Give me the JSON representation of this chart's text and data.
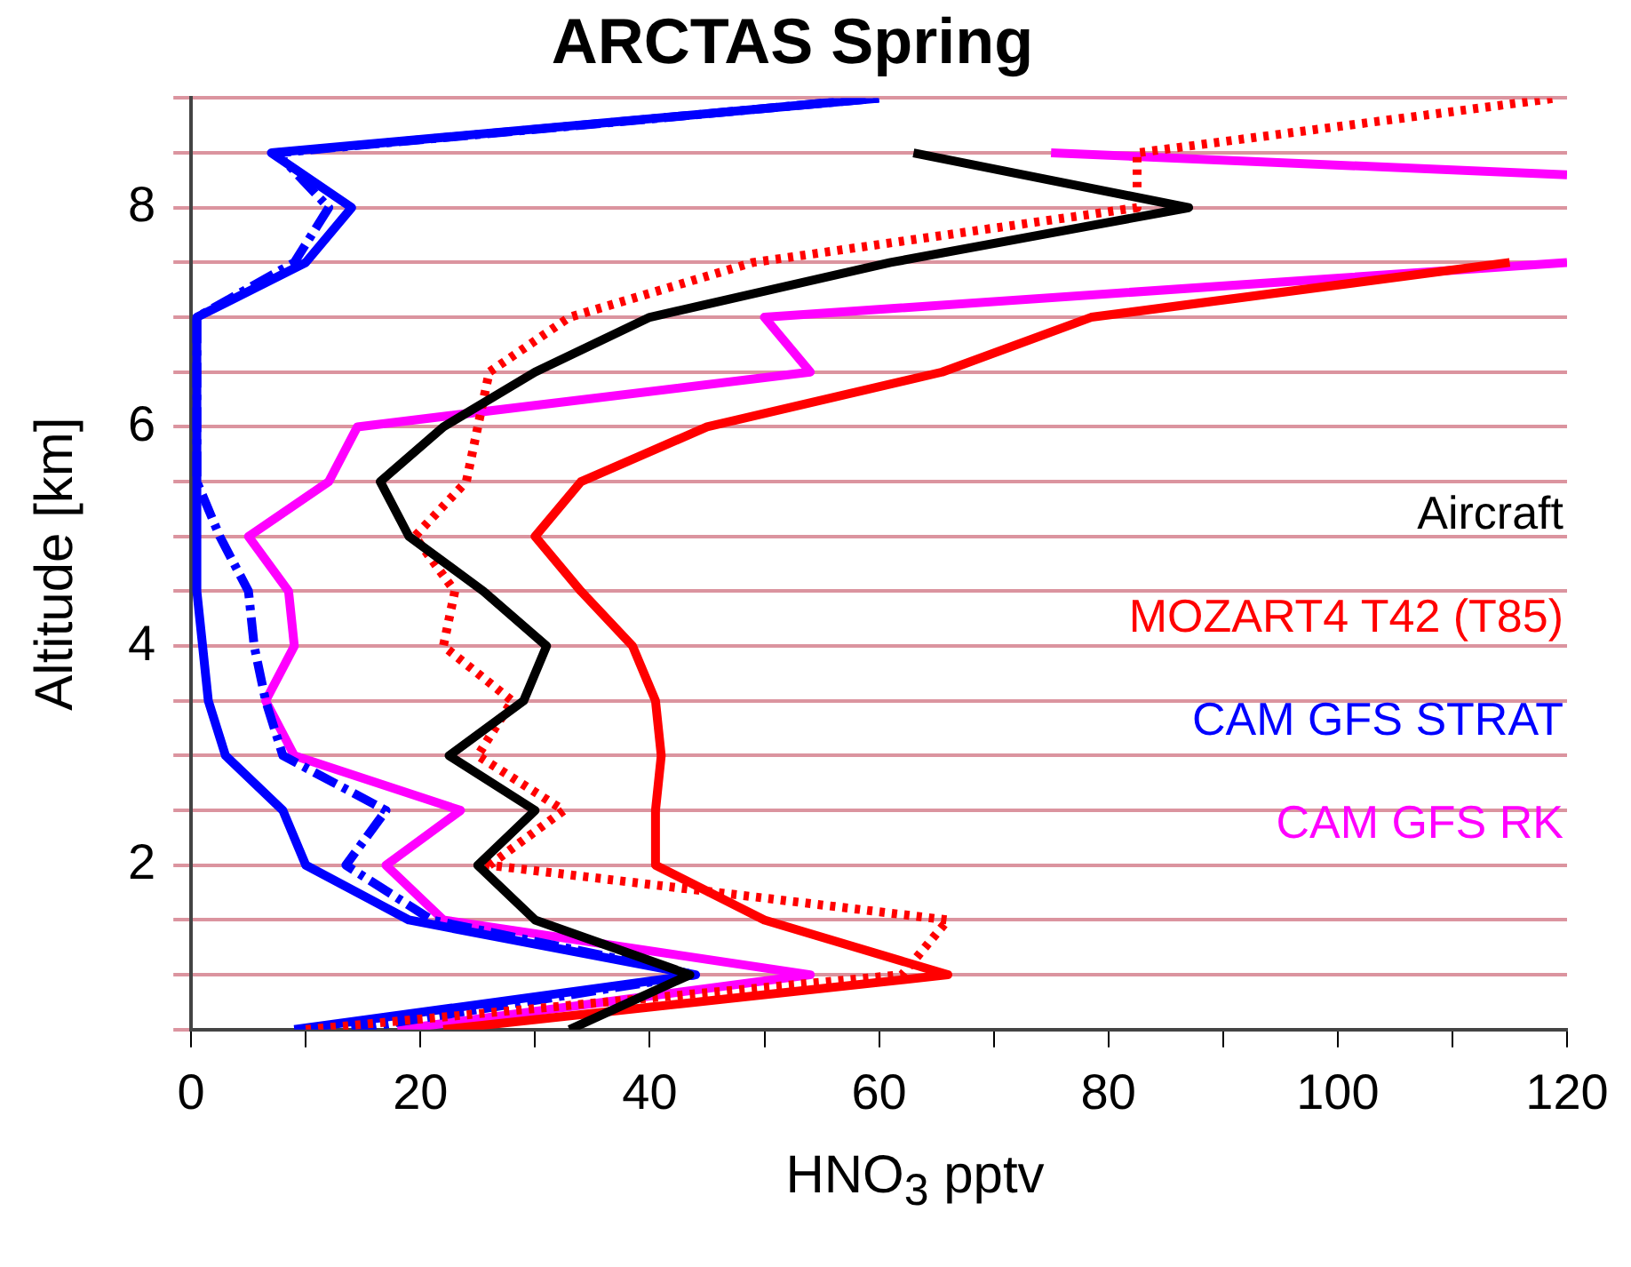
{
  "chart_data": {
    "type": "line",
    "title": "ARCTAS Spring",
    "xlabel": "HNO$_{3}$ pptv",
    "ylabel": "Altitude [km]",
    "legend": "right",
    "grid": "y",
    "marker": "none",
    "xlim": [
      0,
      120
    ],
    "xticks": [
      0,
      {
        "value": 10,
        "label": null
      },
      20,
      {
        "value": 30,
        "label": null
      },
      40,
      {
        "value": 50,
        "label": null
      },
      60,
      {
        "value": 70,
        "label": null
      },
      80,
      {
        "value": 90,
        "label": null
      },
      100,
      {
        "value": 110,
        "label": null
      },
      120
    ],
    "ylim": [
      0.5,
      9
    ],
    "yticks": [
      {
        "value": 0.5,
        "label": null
      },
      {
        "value": 1,
        "label": null
      },
      {
        "value": 1.5,
        "label": null
      },
      2,
      {
        "value": 2.5,
        "label": null
      },
      {
        "value": 3,
        "label": null
      },
      {
        "value": 3.5,
        "label": null
      },
      4,
      {
        "value": 4.5,
        "label": null
      },
      {
        "value": 5,
        "label": null
      },
      {
        "value": 5.5,
        "label": null
      },
      6,
      {
        "value": 6.5,
        "label": null
      },
      {
        "value": 7,
        "label": null
      },
      {
        "value": 7.5,
        "label": null
      },
      8,
      {
        "value": 8.5,
        "label": null
      },
      {
        "value": 9,
        "label": null
      }
    ],
    "series": [
      {
        "name": "Aircraft",
        "color": "#000000",
        "line_style": "solid",
        "x": [
          33,
          43.5,
          30,
          25,
          30,
          22.5,
          29,
          31,
          25.5,
          19,
          16.5,
          22,
          30,
          40,
          61,
          87,
          63
        ],
        "values": [
          0.5,
          1,
          1.5,
          2,
          2.5,
          3,
          3.5,
          4,
          4.5,
          5,
          5.5,
          6,
          6.5,
          7,
          7.5,
          8,
          8.5
        ]
      },
      {
        "name": "MOZART4 T42 (T85)",
        "color": "#ff0000",
        "line_style": "solid",
        "x": [
          22,
          66,
          50,
          40.5,
          40.5,
          41,
          40.5,
          38.5,
          34,
          30,
          34,
          45,
          65.5,
          78.5,
          115
        ],
        "values": [
          0.5,
          1,
          1.5,
          2,
          2.5,
          3,
          3.5,
          4,
          4.5,
          5,
          5.5,
          6,
          6.5,
          7,
          7.5
        ]
      },
      {
        "color": "#ff0000",
        "line_style": "dotted",
        "x": [
          10,
          62,
          66,
          26,
          32.5,
          25,
          28,
          22,
          23,
          19.5,
          24,
          25,
          26,
          33,
          49,
          82.5,
          82.5,
          119
        ],
        "values": [
          0.5,
          1,
          1.5,
          2,
          2.5,
          3,
          3.5,
          4,
          4.5,
          5,
          5.5,
          6,
          6.5,
          7,
          7.5,
          8,
          8.5,
          9
        ]
      },
      {
        "name": "CAM GFS STRAT",
        "color": "#0000ff",
        "line_style": "solid",
        "x": [
          9,
          44,
          19,
          10,
          8,
          3,
          1.5,
          1,
          0.5,
          0.5,
          0.5,
          0.5,
          0.5,
          0.5,
          10,
          14,
          7,
          60
        ],
        "values": [
          0.5,
          1,
          1.5,
          2,
          2.5,
          3,
          3.5,
          4,
          4.5,
          5,
          5.5,
          6,
          6.5,
          7,
          7.5,
          8,
          8.5,
          9
        ]
      },
      {
        "color": "#0000ff",
        "line_style": "dashed",
        "x": [
          14,
          44,
          21,
          13.5,
          17,
          8,
          6.5,
          5.5,
          5,
          2.5,
          0.5,
          0.5,
          0.5,
          0.5,
          9,
          12,
          7.5,
          60
        ],
        "values": [
          0.5,
          1,
          1.5,
          2,
          2.5,
          3,
          3.5,
          4,
          4.5,
          5,
          5.5,
          6,
          6.5,
          7,
          7.5,
          8,
          8.5,
          9
        ]
      },
      {
        "name": "CAM GFS RK",
        "color": "#ff00ff",
        "line_style": "solid",
        "x": [
          18,
          54,
          22,
          17,
          23.5,
          9,
          6.5,
          9,
          8.5,
          5,
          12,
          14.5,
          54,
          50,
          120
        ],
        "values": [
          0.5,
          1,
          1.5,
          2,
          2.5,
          3,
          3.5,
          4,
          4.5,
          5,
          5.5,
          6,
          6.5,
          7,
          7.5
        ]
      },
      {
        "color": "#ff00ff",
        "line_style": "solid",
        "x": [
          120,
          75
        ],
        "values": [
          8.3,
          8.5
        ]
      }
    ]
  }
}
